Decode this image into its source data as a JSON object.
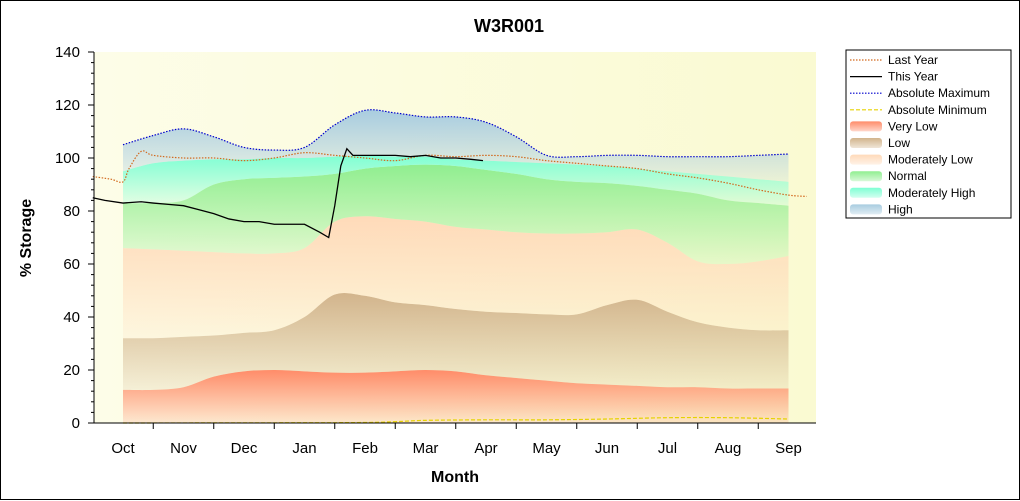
{
  "chart_data": {
    "type": "area",
    "title": "W3R001",
    "xlabel": "Month",
    "ylabel": "% Storage",
    "ylim": [
      0,
      140
    ],
    "yticks": [
      0,
      20,
      40,
      60,
      80,
      100,
      120,
      140
    ],
    "categories": [
      "Oct",
      "Nov",
      "Dec",
      "Jan",
      "Feb",
      "Mar",
      "Apr",
      "May",
      "Jun",
      "Jul",
      "Aug",
      "Sep"
    ],
    "grid": false,
    "legend_position": "right",
    "band_x": [
      0,
      0.5,
      1,
      1.5,
      2,
      2.5,
      3,
      3.5,
      4,
      4.5,
      5,
      5.5,
      6,
      6.5,
      7,
      7.5,
      8,
      8.5,
      9,
      9.5,
      10,
      10.5,
      11
    ],
    "bands": [
      {
        "name": "Very Low",
        "color": "#ff8c69",
        "upper": [
          12.5,
          12.5,
          13.5,
          17.5,
          19.5,
          20,
          19.5,
          19,
          19,
          19.5,
          20,
          19.5,
          18,
          17,
          16,
          15,
          14.5,
          14,
          13.5,
          13.5,
          13,
          13,
          13
        ]
      },
      {
        "name": "Low",
        "color": "#d2b48c",
        "upper": [
          32,
          32,
          32.5,
          33,
          34,
          35,
          40,
          48.5,
          48,
          45.5,
          44.5,
          43,
          42,
          41.5,
          41,
          41,
          44.5,
          46.5,
          42,
          38,
          36,
          35,
          35
        ]
      },
      {
        "name": "Moderately Low",
        "color": "#ffdab9",
        "upper": [
          66,
          65.5,
          65,
          64.5,
          64,
          64,
          66,
          76,
          78,
          77,
          76,
          74,
          73,
          72,
          71.5,
          71.5,
          72,
          73,
          68,
          61,
          60,
          61,
          63
        ]
      },
      {
        "name": "Normal",
        "color": "#90ee90",
        "upper": [
          83,
          83,
          84,
          90,
          92,
          92.5,
          93,
          94,
          96,
          97,
          97.5,
          97,
          95.5,
          94,
          92,
          91,
          90.5,
          89.5,
          88,
          86.5,
          84,
          83,
          82
        ]
      },
      {
        "name": "Moderately High",
        "color": "#7fffd4",
        "upper": [
          95,
          98,
          99,
          99.5,
          99.5,
          100,
          100,
          100.5,
          101,
          100.5,
          100.5,
          99.5,
          99,
          98.5,
          98,
          97.5,
          97,
          96,
          95,
          94,
          93,
          92,
          91
        ]
      },
      {
        "name": "High",
        "color": "#a8cce0",
        "upper": [
          105,
          108.5,
          111,
          108,
          104,
          103,
          104,
          112.5,
          118,
          117,
          115.5,
          115.5,
          113.5,
          108,
          101,
          100.5,
          101,
          101,
          100.5,
          100.5,
          100.5,
          101,
          101.5
        ]
      }
    ],
    "series": [
      {
        "name": "Last Year",
        "style": "dotted",
        "color": "#d2691e",
        "x": [
          -0.5,
          -0.2,
          0,
          0.1,
          0.3,
          0.5,
          1,
          1.5,
          2,
          2.5,
          3,
          3.5,
          4,
          4.5,
          5,
          5.5,
          6,
          6.5,
          7,
          7.5,
          8,
          8.5,
          9,
          9.5,
          10,
          10.5,
          11,
          11.3
        ],
        "y": [
          93,
          92,
          91,
          96,
          102.5,
          101,
          100,
          100,
          99,
          100,
          102,
          101,
          100,
          99,
          101,
          100.5,
          101,
          100.5,
          99,
          98,
          97,
          96,
          94,
          92.5,
          90.5,
          88,
          86,
          85.5
        ]
      },
      {
        "name": "This Year",
        "style": "solid",
        "color": "#000000",
        "x": [
          -0.5,
          -0.3,
          0,
          0.3,
          0.5,
          0.75,
          1,
          1.25,
          1.5,
          1.75,
          2,
          2.25,
          2.5,
          2.75,
          3,
          3.25,
          3.4,
          3.5,
          3.6,
          3.7,
          3.8,
          4,
          4.25,
          4.5,
          4.75,
          5,
          5.25,
          5.5,
          5.75,
          5.95
        ],
        "y": [
          85,
          84,
          83,
          83.5,
          83,
          82.5,
          82,
          80.5,
          79,
          77,
          76,
          76,
          75,
          75,
          75,
          72,
          70,
          82,
          97,
          103.5,
          101,
          101,
          101,
          101,
          100.5,
          101,
          100,
          100,
          99.5,
          99
        ]
      },
      {
        "name": "Absolute Maximum",
        "style": "dotted",
        "color": "#0000cd",
        "follows_band": "High"
      },
      {
        "name": "Absolute Minimum",
        "style": "dashed",
        "color": "#e6d200",
        "x": [
          0,
          3,
          4,
          4.5,
          5,
          6,
          7,
          8,
          9,
          10,
          11
        ],
        "y": [
          0,
          0.1,
          0.2,
          0.5,
          1,
          1.2,
          1.2,
          1.5,
          2,
          2,
          1.5
        ]
      }
    ],
    "legend": [
      {
        "label": "Last Year",
        "kind": "line",
        "style": "dotted",
        "color": "#d2691e"
      },
      {
        "label": "This Year",
        "kind": "line",
        "style": "solid",
        "color": "#000000"
      },
      {
        "label": "Absolute Maximum",
        "kind": "line",
        "style": "dotted",
        "color": "#0000cd"
      },
      {
        "label": "Absolute Minimum",
        "kind": "line",
        "style": "dashed",
        "color": "#e6d200"
      },
      {
        "label": "Very Low",
        "kind": "area",
        "color": "#ff8c69"
      },
      {
        "label": "Low",
        "kind": "area",
        "color": "#d2b48c"
      },
      {
        "label": "Moderately Low",
        "kind": "area",
        "color": "#ffdab9"
      },
      {
        "label": "Normal",
        "kind": "area",
        "color": "#90ee90"
      },
      {
        "label": "Moderately High",
        "kind": "area",
        "color": "#7fffd4"
      },
      {
        "label": "High",
        "kind": "area",
        "color": "#a8cce0"
      }
    ]
  }
}
